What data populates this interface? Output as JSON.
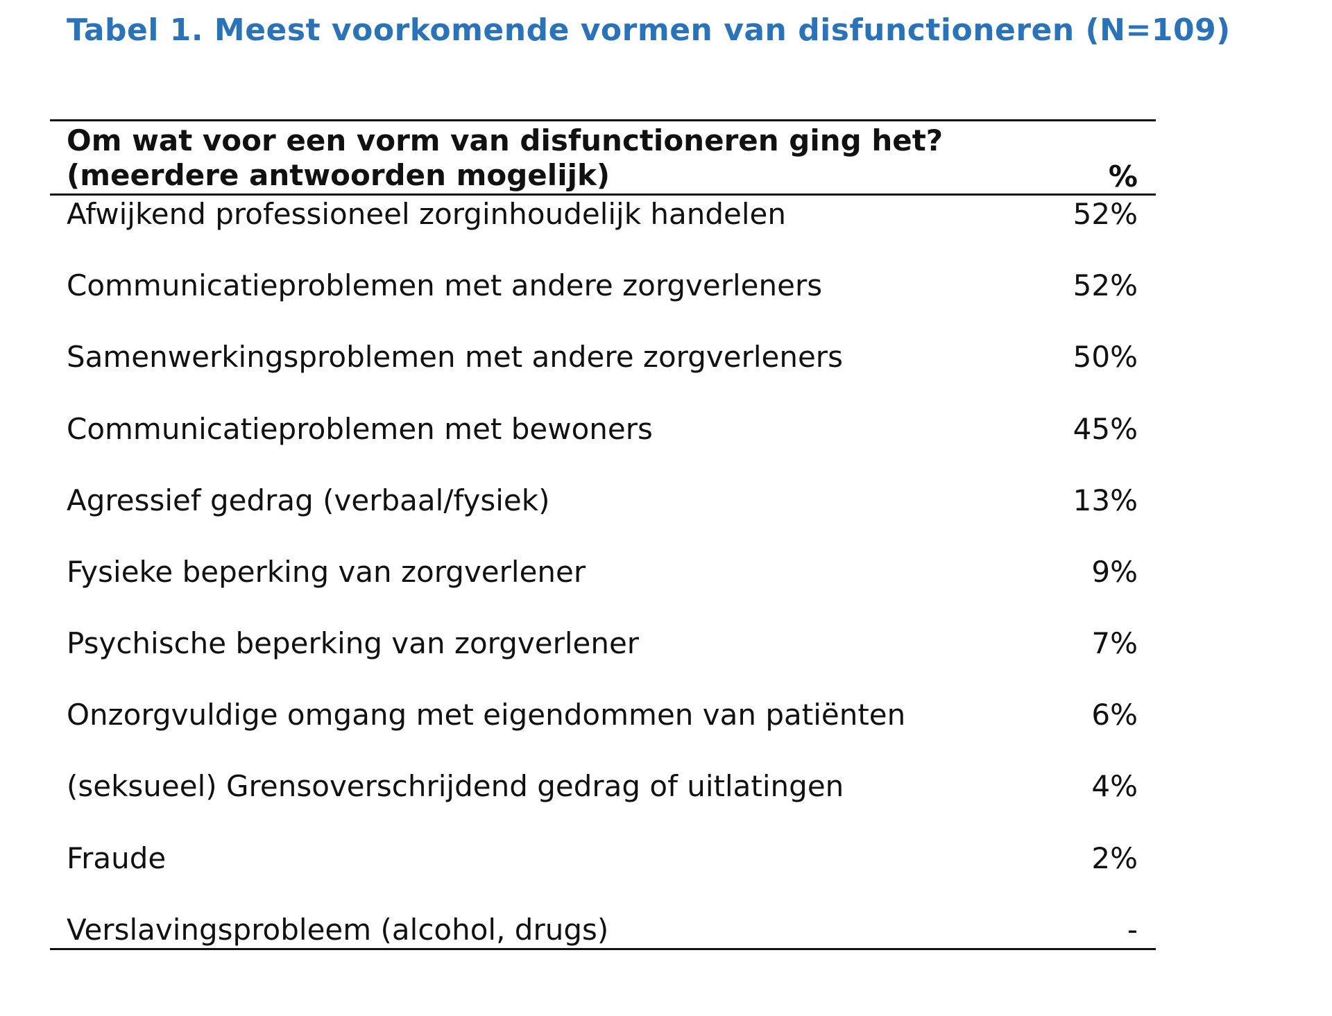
{
  "title": "Tabel 1.  Meest voorkomende vormen van disfunctioneren (N=109)",
  "header": {
    "question_line1": "Om wat voor een vorm van disfunctioneren ging het?",
    "question_line2": "(meerdere antwoorden mogelijk)",
    "pct_label": "%"
  },
  "rows": [
    {
      "label": "Afwijkend professioneel zorginhoudelijk handelen",
      "value": "52%"
    },
    {
      "label": "Communicatieproblemen met andere zorgverleners",
      "value": "52%"
    },
    {
      "label": "Samenwerkingsproblemen met andere zorgverleners",
      "value": "50%"
    },
    {
      "label": "Communicatieproblemen met bewoners",
      "value": "45%"
    },
    {
      "label": "Agressief gedrag (verbaal/fysiek)",
      "value": "13%"
    },
    {
      "label": "Fysieke beperking van zorgverlener",
      "value": "9%"
    },
    {
      "label": "Psychische beperking van zorgverlener",
      "value": "7%"
    },
    {
      "label": "Onzorgvuldige omgang met eigendommen van patiënten",
      "value": "6%"
    },
    {
      "label": "(seksueel) Grensoverschrijdend gedrag of uitlatingen",
      "value": "4%"
    },
    {
      "label": "Fraude",
      "value": "2%"
    },
    {
      "label": "Verslavingsprobleem (alcohol, drugs)",
      "value": "-"
    }
  ]
}
